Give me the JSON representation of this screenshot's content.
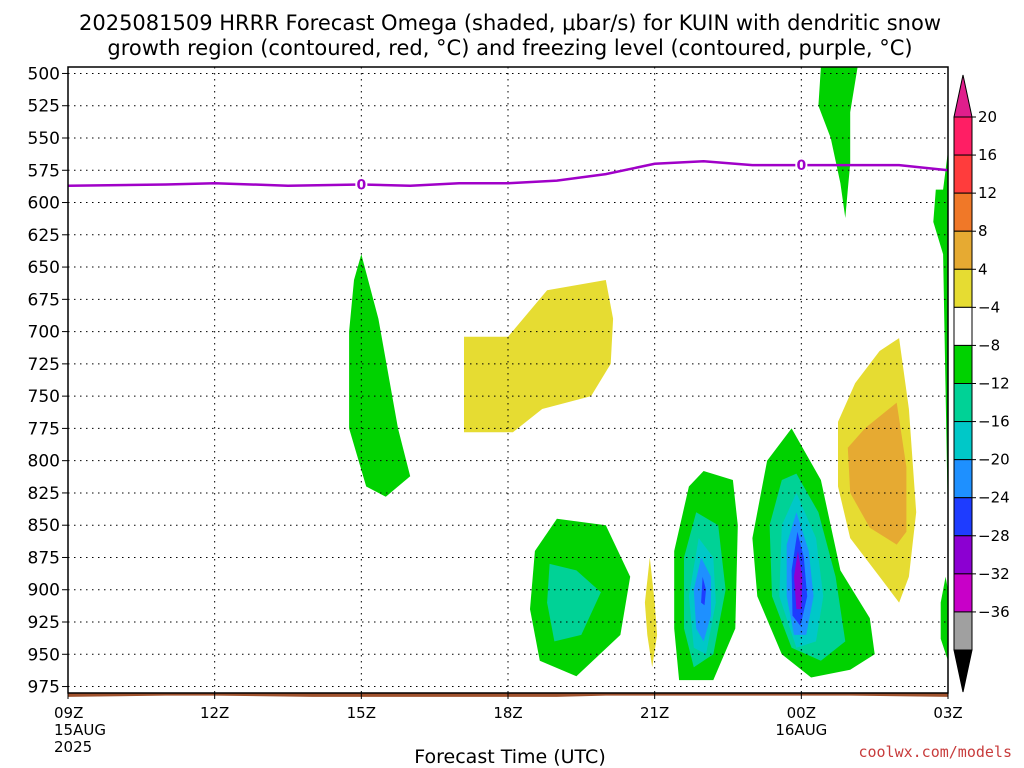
{
  "chart_data": {
    "type": "heatmap",
    "title_line1": "2025081509 HRRR Forecast Omega (shaded, μbar/s) for KUIN with dendritic snow",
    "title_line2": "growth region (contoured, red, °C) and freezing level (contoured, purple, °C)",
    "xlabel": "Forecast Time (UTC)",
    "credit": "coolwx.com/models",
    "y_axis": {
      "reversed": true,
      "range": [
        980,
        495
      ],
      "ticks": [
        500,
        525,
        550,
        575,
        600,
        625,
        650,
        675,
        700,
        725,
        750,
        775,
        800,
        825,
        850,
        875,
        900,
        925,
        950,
        975
      ]
    },
    "x_axis": {
      "range": [
        0,
        18
      ],
      "ticks": [
        {
          "hour": 0,
          "label": "09Z",
          "sub1": "15AUG",
          "sub2": "2025"
        },
        {
          "hour": 3,
          "label": "12Z"
        },
        {
          "hour": 6,
          "label": "15Z"
        },
        {
          "hour": 9,
          "label": "18Z"
        },
        {
          "hour": 12,
          "label": "21Z"
        },
        {
          "hour": 15,
          "label": "00Z",
          "sub1": "16AUG"
        },
        {
          "hour": 18,
          "label": "03Z"
        }
      ]
    },
    "grid": "dotted",
    "freezing_level": {
      "label": "0",
      "label_hours": [
        6,
        15
      ],
      "color": "#a000c8",
      "points": [
        [
          0,
          587
        ],
        [
          2,
          586
        ],
        [
          3,
          585
        ],
        [
          4.5,
          587
        ],
        [
          6,
          586
        ],
        [
          7,
          587
        ],
        [
          8,
          585
        ],
        [
          9,
          585
        ],
        [
          10,
          583
        ],
        [
          11,
          578
        ],
        [
          12,
          570
        ],
        [
          13,
          568
        ],
        [
          14,
          571
        ],
        [
          15,
          571
        ],
        [
          16,
          571
        ],
        [
          17,
          571
        ],
        [
          18,
          575
        ]
      ]
    },
    "terrain": {
      "color": "#a0522d",
      "points": [
        [
          0,
          983
        ],
        [
          2,
          982
        ],
        [
          3,
          982
        ],
        [
          5,
          983
        ],
        [
          6,
          983
        ],
        [
          10,
          983
        ],
        [
          11,
          982
        ],
        [
          13,
          982
        ],
        [
          16,
          982
        ],
        [
          18,
          983
        ]
      ]
    },
    "omega_regions": [
      {
        "name": "rising-0",
        "level": "-8",
        "color": "#00d200",
        "points": [
          [
            6,
            640
          ],
          [
            6.35,
            690
          ],
          [
            6.75,
            775
          ],
          [
            7.0,
            812
          ],
          [
            6.5,
            828
          ],
          [
            6.1,
            820
          ],
          [
            5.75,
            775
          ],
          [
            5.75,
            700
          ],
          [
            5.85,
            660
          ]
        ]
      },
      {
        "name": "sinking-0",
        "level": "4",
        "color": "#e6dc32",
        "points": [
          [
            8.1,
            704
          ],
          [
            9.0,
            704
          ],
          [
            9.8,
            668
          ],
          [
            11.0,
            660
          ],
          [
            11.15,
            690
          ],
          [
            11.1,
            725
          ],
          [
            10.7,
            750
          ],
          [
            9.7,
            760
          ],
          [
            9.1,
            778
          ],
          [
            8.1,
            778
          ]
        ]
      },
      {
        "name": "rising-1",
        "level": "-8",
        "color": "#00d200",
        "points": [
          [
            9.55,
            870
          ],
          [
            10.0,
            845
          ],
          [
            11.0,
            850
          ],
          [
            11.5,
            890
          ],
          [
            11.3,
            935
          ],
          [
            10.4,
            967
          ],
          [
            9.65,
            955
          ],
          [
            9.45,
            915
          ]
        ]
      },
      {
        "name": "rising-1b",
        "level": "-12",
        "color": "#00d296",
        "points": [
          [
            9.85,
            880
          ],
          [
            10.4,
            885
          ],
          [
            10.9,
            902
          ],
          [
            10.5,
            935
          ],
          [
            9.95,
            940
          ],
          [
            9.8,
            910
          ]
        ]
      },
      {
        "name": "sinking-1",
        "level": "4",
        "color": "#e6dc32",
        "points": [
          [
            11.9,
            875
          ],
          [
            12.0,
            910
          ],
          [
            12.05,
            935
          ],
          [
            11.95,
            960
          ],
          [
            11.85,
            935
          ],
          [
            11.8,
            910
          ]
        ]
      },
      {
        "name": "rising-2",
        "level": "-8",
        "color": "#00d200",
        "points": [
          [
            13.0,
            808
          ],
          [
            13.6,
            815
          ],
          [
            13.7,
            850
          ],
          [
            13.65,
            930
          ],
          [
            13.2,
            970
          ],
          [
            12.5,
            970
          ],
          [
            12.4,
            930
          ],
          [
            12.4,
            870
          ],
          [
            12.7,
            820
          ]
        ]
      },
      {
        "name": "rising-2b",
        "level": "-12",
        "color": "#00d296",
        "points": [
          [
            12.85,
            840
          ],
          [
            13.3,
            850
          ],
          [
            13.45,
            900
          ],
          [
            13.2,
            950
          ],
          [
            12.8,
            960
          ],
          [
            12.6,
            930
          ],
          [
            12.6,
            875
          ]
        ]
      },
      {
        "name": "rising-2c",
        "level": "-16",
        "color": "#00c8c8",
        "points": [
          [
            12.9,
            860
          ],
          [
            13.2,
            875
          ],
          [
            13.25,
            910
          ],
          [
            13.05,
            950
          ],
          [
            12.8,
            945
          ],
          [
            12.7,
            905
          ]
        ]
      },
      {
        "name": "rising-2d",
        "level": "-20",
        "color": "#1e90ff",
        "points": [
          [
            12.95,
            875
          ],
          [
            13.15,
            890
          ],
          [
            13.15,
            920
          ],
          [
            13.0,
            940
          ],
          [
            12.85,
            930
          ],
          [
            12.8,
            900
          ]
        ]
      },
      {
        "name": "rising-2e",
        "level": "-24",
        "color": "#1e3cff",
        "points": [
          [
            12.98,
            890
          ],
          [
            13.05,
            900
          ],
          [
            13.02,
            912
          ],
          [
            12.95,
            910
          ]
        ]
      },
      {
        "name": "rising-3",
        "level": "-8",
        "color": "#00d200",
        "points": [
          [
            14.8,
            775
          ],
          [
            15.4,
            815
          ],
          [
            15.8,
            885
          ],
          [
            16.4,
            922
          ],
          [
            16.5,
            950
          ],
          [
            16.0,
            962
          ],
          [
            15.2,
            968
          ],
          [
            14.6,
            950
          ],
          [
            14.1,
            905
          ],
          [
            14.0,
            860
          ],
          [
            14.3,
            800
          ]
        ]
      },
      {
        "name": "rising-3b",
        "level": "-12",
        "color": "#00d296",
        "points": [
          [
            14.9,
            810
          ],
          [
            15.35,
            840
          ],
          [
            15.7,
            890
          ],
          [
            15.9,
            940
          ],
          [
            15.4,
            955
          ],
          [
            14.8,
            945
          ],
          [
            14.4,
            905
          ],
          [
            14.35,
            850
          ],
          [
            14.6,
            815
          ]
        ]
      },
      {
        "name": "rising-3c",
        "level": "-16",
        "color": "#00c8c8",
        "points": [
          [
            14.9,
            825
          ],
          [
            15.3,
            860
          ],
          [
            15.45,
            905
          ],
          [
            15.3,
            940
          ],
          [
            14.9,
            945
          ],
          [
            14.55,
            905
          ],
          [
            14.6,
            850
          ]
        ]
      },
      {
        "name": "rising-3d",
        "level": "-20",
        "color": "#1e90ff",
        "points": [
          [
            14.9,
            840
          ],
          [
            15.15,
            870
          ],
          [
            15.25,
            905
          ],
          [
            15.1,
            935
          ],
          [
            14.85,
            935
          ],
          [
            14.7,
            905
          ],
          [
            14.7,
            865
          ]
        ]
      },
      {
        "name": "rising-3e",
        "level": "-24",
        "color": "#1e3cff",
        "points": [
          [
            14.92,
            855
          ],
          [
            15.05,
            875
          ],
          [
            15.12,
            905
          ],
          [
            14.98,
            928
          ],
          [
            14.82,
            920
          ],
          [
            14.8,
            885
          ]
        ]
      },
      {
        "name": "rising-3f",
        "level": "-28",
        "color": "#8c00d2",
        "points": [
          [
            14.93,
            870
          ],
          [
            15.02,
            890
          ],
          [
            15.0,
            915
          ],
          [
            14.9,
            915
          ],
          [
            14.85,
            890
          ]
        ]
      },
      {
        "name": "rising-4",
        "level": "-8",
        "color": "#00d200",
        "points": [
          [
            15.4,
            495
          ],
          [
            16.15,
            495
          ],
          [
            16.0,
            530
          ],
          [
            16.0,
            570
          ],
          [
            15.95,
            590
          ],
          [
            15.9,
            612
          ],
          [
            15.8,
            585
          ],
          [
            15.6,
            550
          ],
          [
            15.35,
            525
          ]
        ]
      },
      {
        "name": "sinking-2",
        "level": "4",
        "color": "#e6dc32",
        "points": [
          [
            17.0,
            705
          ],
          [
            17.2,
            760
          ],
          [
            17.35,
            840
          ],
          [
            17.2,
            890
          ],
          [
            17.0,
            910
          ],
          [
            16.6,
            890
          ],
          [
            16.0,
            860
          ],
          [
            15.75,
            820
          ],
          [
            15.75,
            770
          ],
          [
            16.1,
            740
          ],
          [
            16.6,
            715
          ]
        ]
      },
      {
        "name": "sinking-2b",
        "level": "8",
        "color": "#e6aa32",
        "points": [
          [
            16.95,
            755
          ],
          [
            17.15,
            805
          ],
          [
            17.15,
            855
          ],
          [
            16.95,
            865
          ],
          [
            16.4,
            852
          ],
          [
            16.0,
            825
          ],
          [
            15.95,
            790
          ],
          [
            16.3,
            775
          ]
        ]
      },
      {
        "name": "rising-5",
        "level": "-8",
        "color": "#00d200",
        "points": [
          [
            18.2,
            560
          ],
          [
            18.2,
            850
          ],
          [
            17.9,
            640
          ],
          [
            17.7,
            615
          ],
          [
            17.75,
            590
          ],
          [
            17.9,
            590
          ]
        ]
      },
      {
        "name": "rising-6",
        "level": "-8",
        "color": "#00d200",
        "points": [
          [
            17.95,
            890
          ],
          [
            18.1,
            900
          ],
          [
            18.0,
            955
          ],
          [
            17.85,
            938
          ],
          [
            17.85,
            910
          ]
        ]
      }
    ],
    "colorbar": {
      "labels": [
        "20",
        "16",
        "12",
        "8",
        "4",
        "−4",
        "−8",
        "−12",
        "−16",
        "−20",
        "−24",
        "−28",
        "−32",
        "−36"
      ],
      "colors": [
        "#ff1e64",
        "#ff3c3c",
        "#f07828",
        "#e6aa32",
        "#e6dc32",
        "#ffffff",
        "#00d200",
        "#00d296",
        "#00c8c8",
        "#1e90ff",
        "#1e3cff",
        "#8c00d2",
        "#c800c8",
        "#a0a0a0"
      ],
      "top_color": "#e01e8c",
      "bottom_color": "#000000"
    }
  }
}
